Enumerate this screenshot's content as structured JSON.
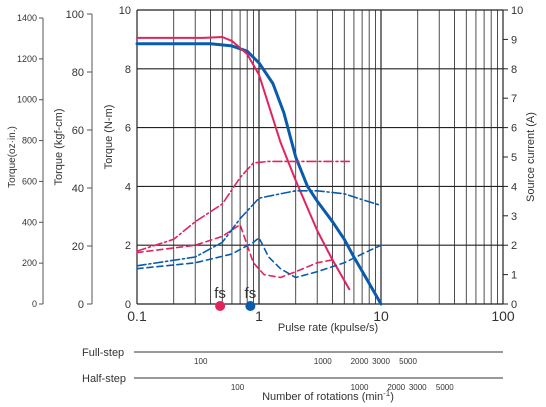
{
  "chart_data": {
    "type": "line",
    "x_scale": "log",
    "xlim": [
      0.1,
      100
    ],
    "xlabel": "Pulse rate (kpulse/s)",
    "x_ticks": [
      "0.1",
      "1",
      "10",
      "100"
    ],
    "ylim": [
      0,
      10
    ],
    "grid": true,
    "y_axes": {
      "torque_oz_in": {
        "label": "Torque(oz·in.)",
        "ticks": [
          "0",
          "200",
          "400",
          "600",
          "800",
          "1000",
          "1200",
          "1400"
        ]
      },
      "torque_kgf_cm": {
        "label": "Torque (kgf-cm)",
        "ticks": [
          "0",
          "20",
          "40",
          "60",
          "80",
          "100"
        ]
      },
      "torque_n_m": {
        "label": "Torque (N-m)",
        "ticks": [
          "0",
          "2",
          "4",
          "6",
          "8",
          "10"
        ]
      },
      "source_current": {
        "label": "Source current (A)",
        "ticks": [
          "0",
          "1",
          "2",
          "3",
          "4",
          "5",
          "6",
          "7",
          "8",
          "9",
          "10"
        ]
      }
    },
    "series": [
      {
        "color": "#0b5bad",
        "style": "solid",
        "points": [
          [
            0.1,
            8.85
          ],
          [
            0.2,
            8.85
          ],
          [
            0.4,
            8.85
          ],
          [
            0.6,
            8.78
          ],
          [
            0.8,
            8.6
          ],
          [
            1.0,
            8.2
          ],
          [
            1.3,
            7.5
          ],
          [
            1.6,
            6.5
          ],
          [
            2.0,
            5.0
          ],
          [
            2.5,
            4.0
          ],
          [
            3.0,
            3.5
          ],
          [
            4.0,
            2.8
          ],
          [
            5.0,
            2.2
          ],
          [
            6.0,
            1.6
          ],
          [
            8.0,
            0.7
          ],
          [
            10.0,
            0.0
          ]
        ]
      },
      {
        "color": "#e0245e",
        "style": "solid",
        "points": [
          [
            0.1,
            9.05
          ],
          [
            0.2,
            9.05
          ],
          [
            0.35,
            9.05
          ],
          [
            0.5,
            9.08
          ],
          [
            0.6,
            8.95
          ],
          [
            0.8,
            8.5
          ],
          [
            1.0,
            7.8
          ],
          [
            1.5,
            5.5
          ],
          [
            2.0,
            4.2
          ],
          [
            3.0,
            2.5
          ],
          [
            4.0,
            1.5
          ],
          [
            5.0,
            0.8
          ],
          [
            5.5,
            0.5
          ]
        ]
      },
      {
        "color": "#e0245e",
        "style": "dashdot",
        "points": [
          [
            0.1,
            1.8
          ],
          [
            0.2,
            2.2
          ],
          [
            0.3,
            2.8
          ],
          [
            0.5,
            3.4
          ],
          [
            0.7,
            4.3
          ],
          [
            0.9,
            4.8
          ],
          [
            1.2,
            4.85
          ],
          [
            2.0,
            4.85
          ],
          [
            3.0,
            4.85
          ],
          [
            5.5,
            4.85
          ]
        ]
      },
      {
        "color": "#e0245e",
        "style": "dashed",
        "points": [
          [
            0.1,
            1.75
          ],
          [
            0.3,
            2.0
          ],
          [
            0.5,
            2.3
          ],
          [
            0.7,
            2.7
          ],
          [
            0.8,
            2.0
          ],
          [
            0.9,
            1.4
          ],
          [
            1.1,
            1.0
          ],
          [
            1.5,
            0.9
          ],
          [
            2.0,
            1.1
          ],
          [
            3.0,
            1.4
          ],
          [
            4.0,
            1.5
          ]
        ]
      },
      {
        "color": "#0b5bad",
        "style": "dashdot",
        "points": [
          [
            0.1,
            1.3
          ],
          [
            0.3,
            1.6
          ],
          [
            0.5,
            2.1
          ],
          [
            0.7,
            2.9
          ],
          [
            1.0,
            3.6
          ],
          [
            1.5,
            3.75
          ],
          [
            2.0,
            3.85
          ],
          [
            3.0,
            3.85
          ],
          [
            5.0,
            3.75
          ],
          [
            7.0,
            3.55
          ],
          [
            10.0,
            3.35
          ]
        ]
      },
      {
        "color": "#0b5bad",
        "style": "dashed",
        "points": [
          [
            0.1,
            1.2
          ],
          [
            0.3,
            1.4
          ],
          [
            0.6,
            1.7
          ],
          [
            0.9,
            2.1
          ],
          [
            1.0,
            2.25
          ],
          [
            1.2,
            1.6
          ],
          [
            1.5,
            1.2
          ],
          [
            2.0,
            0.9
          ],
          [
            3.0,
            1.1
          ],
          [
            5.0,
            1.4
          ],
          [
            7.0,
            1.7
          ],
          [
            10.0,
            2.0
          ]
        ]
      }
    ],
    "markers": [
      {
        "label": "fs",
        "x": 0.48,
        "y": 0,
        "color": "#e0245e"
      },
      {
        "label": "fs",
        "x": 0.85,
        "y": 0,
        "color": "#0b5bad"
      }
    ],
    "rpm_scales": [
      {
        "label": "Full-step",
        "ticks": [
          {
            "x": 0.333,
            "label": "100"
          },
          {
            "x": 3.333,
            "label": "1000"
          },
          {
            "x": 6.667,
            "label": "2000"
          },
          {
            "x": 10.0,
            "label": "3000"
          },
          {
            "x": 16.667,
            "label": "5000"
          }
        ]
      },
      {
        "label": "Half-step",
        "ticks": [
          {
            "x": 0.667,
            "label": "100"
          },
          {
            "x": 6.667,
            "label": "1000"
          },
          {
            "x": 13.333,
            "label": "2000"
          },
          {
            "x": 20.0,
            "label": "3000"
          },
          {
            "x": 33.333,
            "label": "5000"
          }
        ]
      }
    ],
    "rpm_label_main": "Number of rotations (min",
    "rpm_label_sup": "-1",
    "rpm_label_end": ")"
  }
}
